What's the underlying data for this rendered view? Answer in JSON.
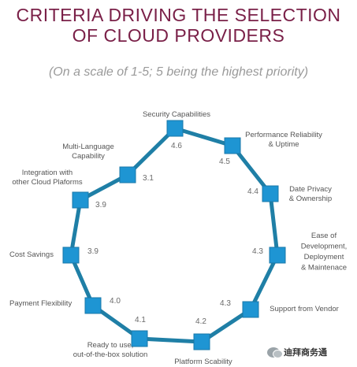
{
  "title_line1": "CRITERIA DRIVING THE SELECTION",
  "title_line2": "OF CLOUD PROVIDERS",
  "subtitle": "(On a scale of 1-5; 5 being the highest priority)",
  "watermark": "迪拜商务通",
  "colors": {
    "title": "#7a2048",
    "line": "#1f7fa6",
    "marker": "#1e95d3",
    "text": "#555555"
  },
  "chart_data": {
    "type": "line",
    "shape": "closed-loop",
    "marker": "square",
    "scale": [
      1,
      5
    ],
    "categories": [
      "Security Capabilities",
      "Performance Reliability & Uptime",
      "Date Privacy & Ownership",
      "Ease of Development, Deployment & Maintenace",
      "Support from Vendor",
      "Platform Scability",
      "Ready to use, out-of-the-box solution",
      "Payment Flexibility",
      "Cost Savings",
      "Integration with other Cloud Plaforms",
      "Multi-Language Capability"
    ],
    "label_lines": [
      [
        "Security Capabilities"
      ],
      [
        "Performance Reliability",
        "& Uptime"
      ],
      [
        "Date Privacy",
        "& Ownership"
      ],
      [
        "Ease of",
        "Development,",
        "Deployment",
        "& Maintenace"
      ],
      [
        "Support from Vendor"
      ],
      [
        "Platform Scability"
      ],
      [
        "Ready to use,",
        "out-of-the-box solution"
      ],
      [
        "Payment Flexibility"
      ],
      [
        "Cost Savings"
      ],
      [
        "Integration with",
        "other Cloud Plaforms"
      ],
      [
        "Multi-Language",
        "Capability"
      ]
    ],
    "values": [
      4.6,
      4.5,
      4.4,
      4.3,
      4.3,
      4.2,
      4.1,
      4.0,
      3.9,
      3.9,
      3.1
    ],
    "value_labels": [
      "4.6",
      "4.5",
      "4.4",
      "4.3",
      "4.3",
      "4.2",
      "4.1",
      "4.0",
      "3.9",
      "3.9",
      "3.1"
    ]
  }
}
